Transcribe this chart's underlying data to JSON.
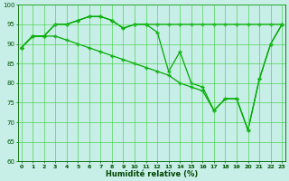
{
  "xlabel": "Humidité relative (%)",
  "bg_color": "#c8eee8",
  "line_color": "#00aa00",
  "grid_color": "#33cc33",
  "ylim": [
    60,
    100
  ],
  "xlim": [
    -0.3,
    23.3
  ],
  "yticks": [
    60,
    65,
    70,
    75,
    80,
    85,
    90,
    95,
    100
  ],
  "xticks": [
    0,
    1,
    2,
    3,
    4,
    5,
    6,
    7,
    8,
    9,
    10,
    11,
    12,
    13,
    14,
    15,
    16,
    17,
    18,
    19,
    20,
    21,
    22,
    23
  ],
  "series1_y": [
    89,
    92,
    92,
    95,
    95,
    96,
    97,
    97,
    96,
    94,
    95,
    95,
    95,
    95,
    95,
    95,
    95,
    95,
    95,
    95,
    95,
    95,
    95,
    95
  ],
  "series2_y": [
    89,
    92,
    92,
    95,
    95,
    96,
    97,
    97,
    96,
    94,
    95,
    95,
    93,
    83,
    88,
    80,
    79,
    73,
    76,
    76,
    68,
    81,
    90,
    95
  ],
  "series3_y": [
    89,
    92,
    92,
    92,
    91,
    90,
    89,
    88,
    87,
    86,
    85,
    84,
    83,
    82,
    80,
    79,
    78,
    73,
    76,
    76,
    68,
    81,
    90,
    95
  ]
}
